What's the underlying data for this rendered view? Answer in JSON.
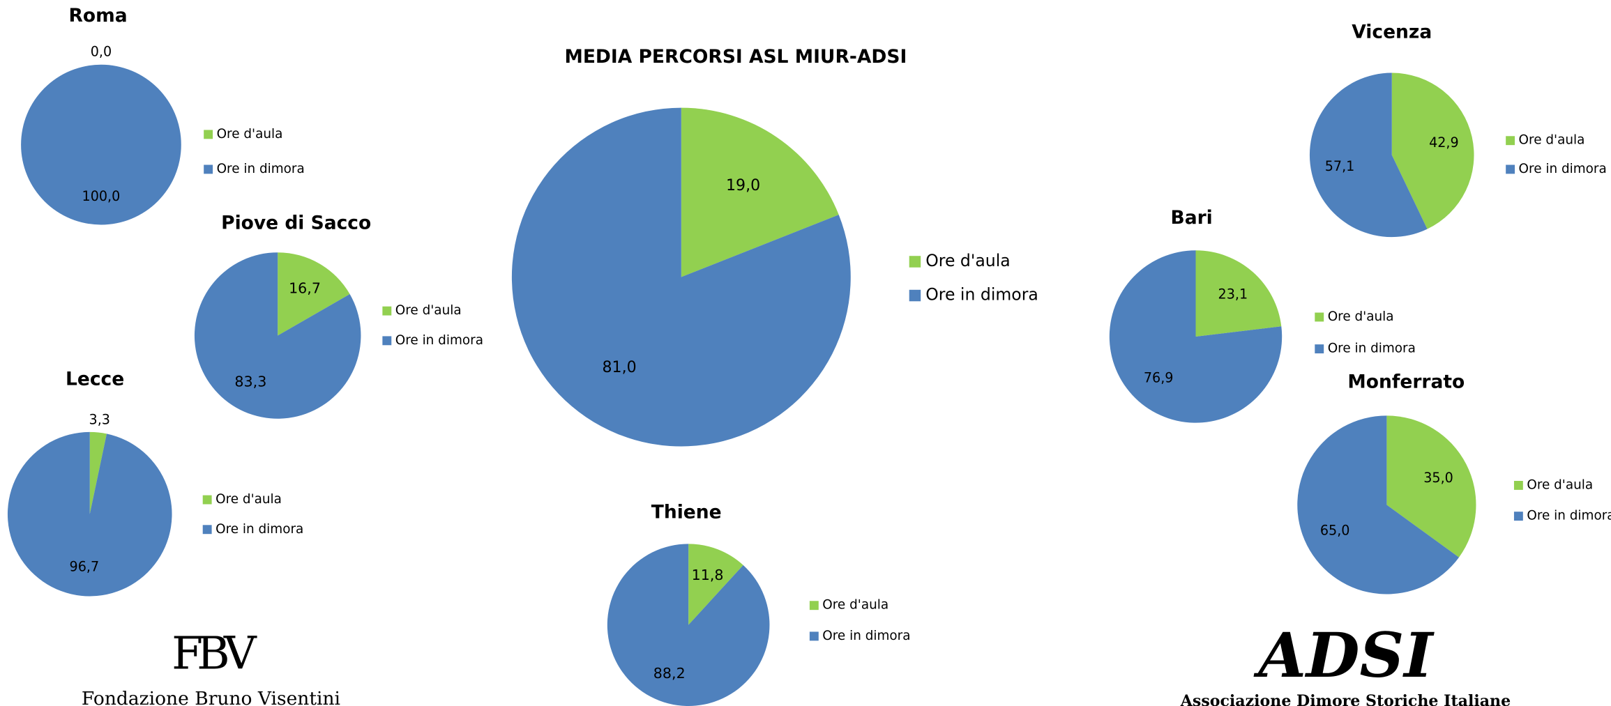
{
  "chart_data": [
    {
      "type": "pie",
      "title": "MEDIA PERCORSI ASL MIUR-ADSI",
      "categories": [
        "Ore d'aula",
        "Ore in dimora"
      ],
      "values": [
        19.0,
        81.0
      ],
      "value_labels": [
        "19,0",
        "81,0"
      ],
      "colors": [
        "#92d050",
        "#4f81bd"
      ]
    },
    {
      "type": "pie",
      "title": "Roma",
      "categories": [
        "Ore d'aula",
        "Ore in dimora"
      ],
      "values": [
        0.0,
        100.0
      ],
      "value_labels": [
        "0,0",
        "100,0"
      ],
      "colors": [
        "#92d050",
        "#4f81bd"
      ]
    },
    {
      "type": "pie",
      "title": "Piove di Sacco",
      "categories": [
        "Ore d'aula",
        "Ore in dimora"
      ],
      "values": [
        16.7,
        83.3
      ],
      "value_labels": [
        "16,7",
        "83,3"
      ],
      "colors": [
        "#92d050",
        "#4f81bd"
      ]
    },
    {
      "type": "pie",
      "title": "Lecce",
      "categories": [
        "Ore d'aula",
        "Ore in dimora"
      ],
      "values": [
        3.3,
        96.7
      ],
      "value_labels": [
        "3,3",
        "96,7"
      ],
      "colors": [
        "#92d050",
        "#4f81bd"
      ]
    },
    {
      "type": "pie",
      "title": "Thiene",
      "categories": [
        "Ore d'aula",
        "Ore in dimora"
      ],
      "values": [
        11.8,
        88.2
      ],
      "value_labels": [
        "11,8",
        "88,2"
      ],
      "colors": [
        "#92d050",
        "#4f81bd"
      ]
    },
    {
      "type": "pie",
      "title": "Bari",
      "categories": [
        "Ore d'aula",
        "Ore in dimora"
      ],
      "values": [
        23.1,
        76.9
      ],
      "value_labels": [
        "23,1",
        "76,9"
      ],
      "colors": [
        "#92d050",
        "#4f81bd"
      ]
    },
    {
      "type": "pie",
      "title": "Vicenza",
      "categories": [
        "Ore d'aula",
        "Ore in dimora"
      ],
      "values": [
        42.9,
        57.1
      ],
      "value_labels": [
        "42,9",
        "57,1"
      ],
      "colors": [
        "#92d050",
        "#4f81bd"
      ]
    },
    {
      "type": "pie",
      "title": "Monferrato",
      "categories": [
        "Ore d'aula",
        "Ore in dimora"
      ],
      "values": [
        35.0,
        65.0
      ],
      "value_labels": [
        "35,0",
        "65,0"
      ],
      "colors": [
        "#92d050",
        "#4f81bd"
      ]
    }
  ],
  "logos": {
    "fbv_mark": "FBV",
    "fbv_name": "Fondazione Bruno Visentini",
    "adsi_mark": "ADSI",
    "adsi_name": "Associazione Dimore Storiche Italiane"
  }
}
